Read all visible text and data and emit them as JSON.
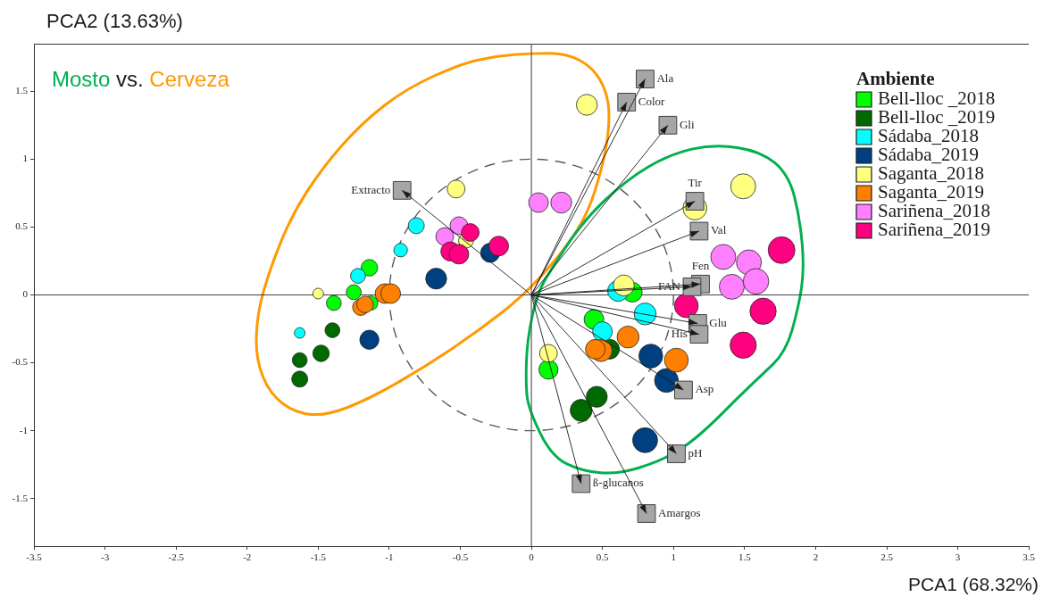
{
  "chart_data": {
    "type": "bubble",
    "xlabel": "PCA1 (68.32%)",
    "ylabel": "PCA2 (13.63%)",
    "legend_title": "Ambiente",
    "legend": "top right",
    "marker": "circle",
    "xlim": [
      -3.5,
      3.5
    ],
    "xticks": [
      -3.5,
      -3,
      -2.5,
      -2,
      -1.5,
      -1,
      -0.5,
      0,
      0.5,
      1,
      1.5,
      2,
      2.5,
      3,
      3.5
    ],
    "ylim": [
      -1.85,
      1.85
    ],
    "yticks": [
      -1.5,
      -1,
      -0.5,
      0,
      0.5,
      1,
      1.5
    ],
    "ref_lines": [
      {
        "axis": "x",
        "value": 0,
        "color": "#595959"
      },
      {
        "axis": "y",
        "value": 0,
        "color": "#404040"
      }
    ],
    "annotations": [
      "Mosto vs. Cerveza",
      {
        "text": "Ala",
        "x": 0.8,
        "y": 1.59
      },
      {
        "text": "Color",
        "x": 0.67,
        "y": 1.42
      },
      {
        "text": "Gli",
        "x": 0.96,
        "y": 1.25
      },
      {
        "text": "Extracto",
        "x": -0.91,
        "y": 0.77
      },
      {
        "text": "Tir",
        "x": 1.15,
        "y": 0.69
      },
      {
        "text": "Val",
        "x": 1.18,
        "y": 0.47
      },
      {
        "text": "Fen",
        "x": 1.19,
        "y": 0.08
      },
      {
        "text": "FAN",
        "x": 1.13,
        "y": 0.06
      },
      {
        "text": "Glu",
        "x": 1.17,
        "y": -0.21
      },
      {
        "text": "His",
        "x": 1.18,
        "y": -0.29
      },
      {
        "text": "Asp",
        "x": 1.07,
        "y": -0.7
      },
      {
        "text": "pH",
        "x": 1.02,
        "y": -1.17
      },
      {
        "text": "ß-glucanos",
        "x": 0.35,
        "y": -1.39
      },
      {
        "text": "Amargos",
        "x": 0.81,
        "y": -1.61
      }
    ],
    "series": [
      {
        "name": "Bell-lloc _2018",
        "color": "#00ff00",
        "x": [
          -1.14,
          -1.25,
          -1.39,
          -1.13,
          0.71,
          0.44,
          0.12
        ],
        "values": [
          0.2,
          0.02,
          -0.06,
          -0.06,
          0.02,
          -0.18,
          -0.55
        ],
        "sizes": [
          0.38,
          0.31,
          0.31,
          0.28,
          0.54,
          0.54,
          0.51
        ]
      },
      {
        "name": "Bell-lloc _2019",
        "color": "#006a00",
        "x": [
          -1.4,
          -1.48,
          -1.63,
          -1.63,
          0.55,
          0.46,
          0.35
        ],
        "values": [
          -0.26,
          -0.43,
          -0.48,
          -0.62,
          -0.4,
          -0.75,
          -0.85
        ],
        "sizes": [
          0.31,
          0.38,
          0.31,
          0.36,
          0.54,
          0.61,
          0.67
        ]
      },
      {
        "name": "Sádaba_2018",
        "color": "#00ffff",
        "x": [
          -0.81,
          -0.92,
          -1.22,
          -1.63,
          0.61,
          0.8,
          0.5
        ],
        "values": [
          0.51,
          0.33,
          0.14,
          -0.28,
          0.03,
          -0.14,
          -0.27
        ],
        "sizes": [
          0.36,
          0.26,
          0.31,
          0.16,
          0.61,
          0.67,
          0.54
        ]
      },
      {
        "name": "Sádaba_2019",
        "color": "#003f80",
        "x": [
          -0.29,
          -0.67,
          -1.14,
          0.84,
          0.95,
          0.8
        ],
        "values": [
          0.31,
          0.12,
          -0.33,
          -0.45,
          -0.63,
          -1.07
        ],
        "sizes": [
          0.51,
          0.61,
          0.51,
          0.79,
          0.79,
          0.87
        ]
      },
      {
        "name": "Saganta_2018",
        "color": "#ffff80",
        "x": [
          -0.53,
          -0.46,
          -1.5,
          0.39,
          1.49,
          1.15,
          0.65,
          0.12
        ],
        "values": [
          0.78,
          0.4,
          0.01,
          1.4,
          0.8,
          0.64,
          0.07,
          -0.43
        ],
        "sizes": [
          0.44,
          0.31,
          0.16,
          0.61,
          0.87,
          0.79,
          0.61,
          0.44
        ]
      },
      {
        "name": "Saganta_2019",
        "color": "#ff8000",
        "x": [
          -1.03,
          -0.99,
          -1.2,
          -1.17,
          0.68,
          0.49,
          0.45,
          1.02
        ],
        "values": [
          0.01,
          0.01,
          -0.09,
          -0.07,
          -0.31,
          -0.41,
          -0.4,
          -0.48
        ],
        "sizes": [
          0.54,
          0.54,
          0.38,
          0.38,
          0.67,
          0.67,
          0.54,
          0.79
        ]
      },
      {
        "name": "Sariñena_2018",
        "color": "#ff80ff",
        "x": [
          -0.61,
          -0.51,
          0.05,
          0.21,
          1.35,
          1.53,
          1.41,
          1.58
        ],
        "values": [
          0.43,
          0.51,
          0.68,
          0.68,
          0.28,
          0.24,
          0.06,
          0.1
        ],
        "sizes": [
          0.44,
          0.44,
          0.54,
          0.61,
          0.87,
          0.87,
          0.87,
          0.91
        ]
      },
      {
        "name": "Sariñena_2019",
        "color": "#ff0080",
        "x": [
          -0.43,
          -0.57,
          -0.51,
          -0.23,
          1.76,
          1.09,
          1.63,
          1.49
        ],
        "values": [
          0.46,
          0.32,
          0.3,
          0.36,
          0.33,
          -0.08,
          -0.12,
          -0.37
        ],
        "sizes": [
          0.44,
          0.51,
          0.54,
          0.54,
          1,
          0.79,
          0.96,
          0.96
        ]
      },
      {
        "type": "scatter",
        "marker": "square",
        "color": "#a6a6a6",
        "x": [
          0.8,
          0.67,
          0.96,
          -0.91,
          1.15,
          1.18,
          1.19,
          1.13,
          1.17,
          1.18,
          1.07,
          1.02,
          0.35,
          0.81
        ],
        "values": [
          1.59,
          1.42,
          1.25,
          0.77,
          0.69,
          0.47,
          0.08,
          0.06,
          -0.21,
          -0.29,
          -0.7,
          -1.17,
          -1.39,
          -1.61
        ]
      }
    ]
  }
}
